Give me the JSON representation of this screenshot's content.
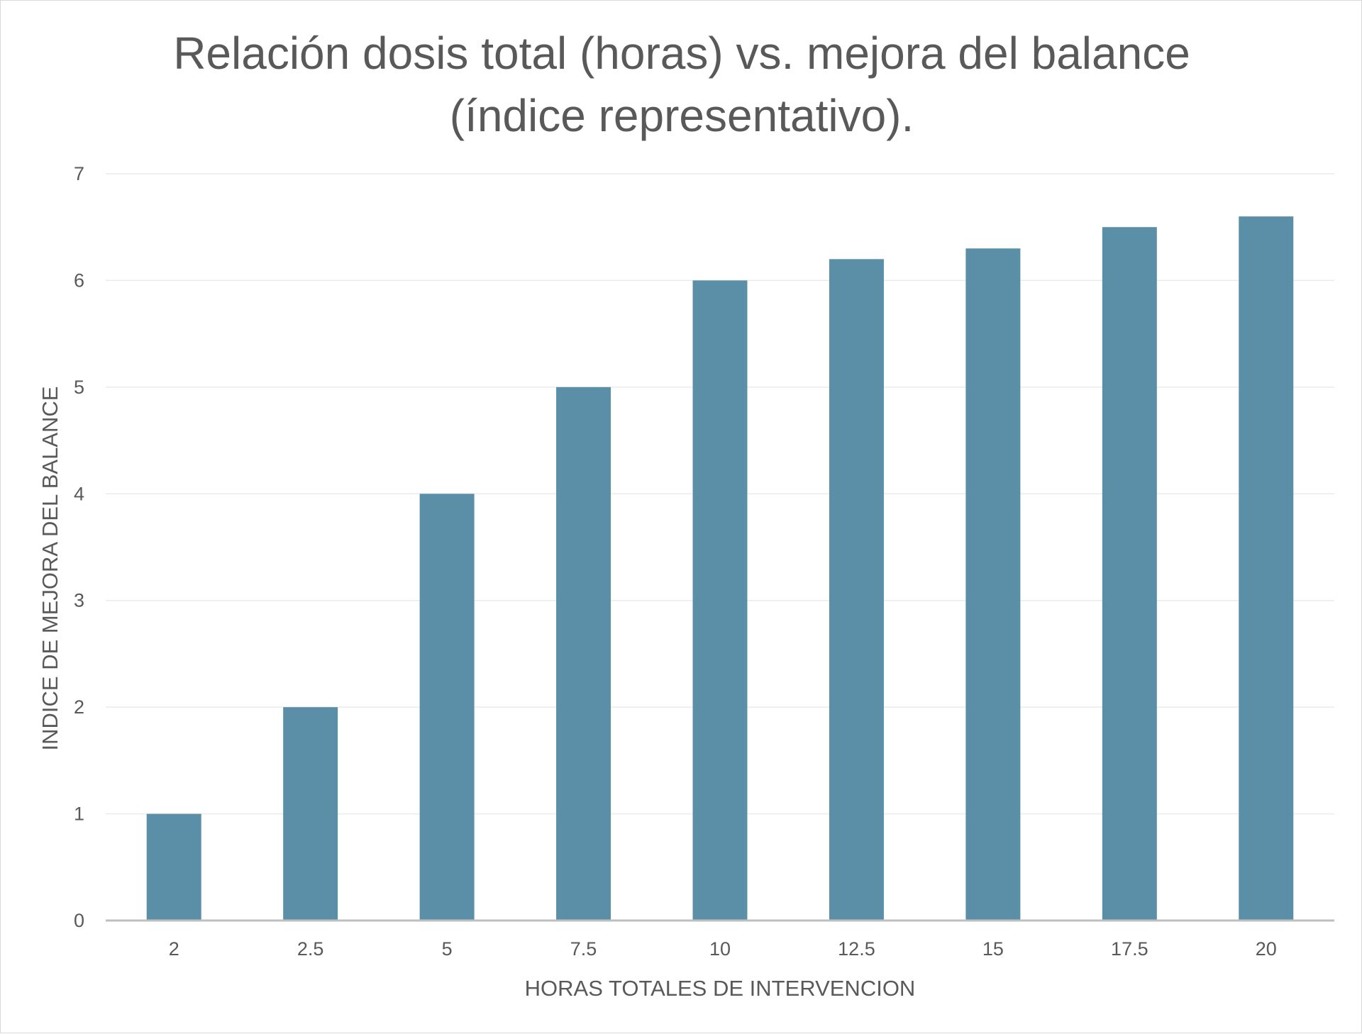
{
  "chart_data": {
    "type": "bar",
    "title": "Relación dosis total (horas) vs. mejora del balance (índice representativo).",
    "xlabel": "HORAS TOTALES DE INTERVENCION",
    "ylabel": "INDICE DE MEJORA DEL BALANCE",
    "categories": [
      "2",
      "2.5",
      "5",
      "7.5",
      "10",
      "12.5",
      "15",
      "17.5",
      "20"
    ],
    "values": [
      1,
      2,
      4,
      5,
      6,
      6.2,
      6.3,
      6.5,
      6.6
    ],
    "ylim": [
      0,
      7
    ],
    "yticks": [
      "0",
      "1",
      "2",
      "3",
      "4",
      "5",
      "6",
      "7"
    ],
    "grid": true,
    "legend": "none",
    "bar_color": "#5b8fa8",
    "gridline_color": "#ebebeb",
    "axis_color": "#bfbfbf"
  }
}
